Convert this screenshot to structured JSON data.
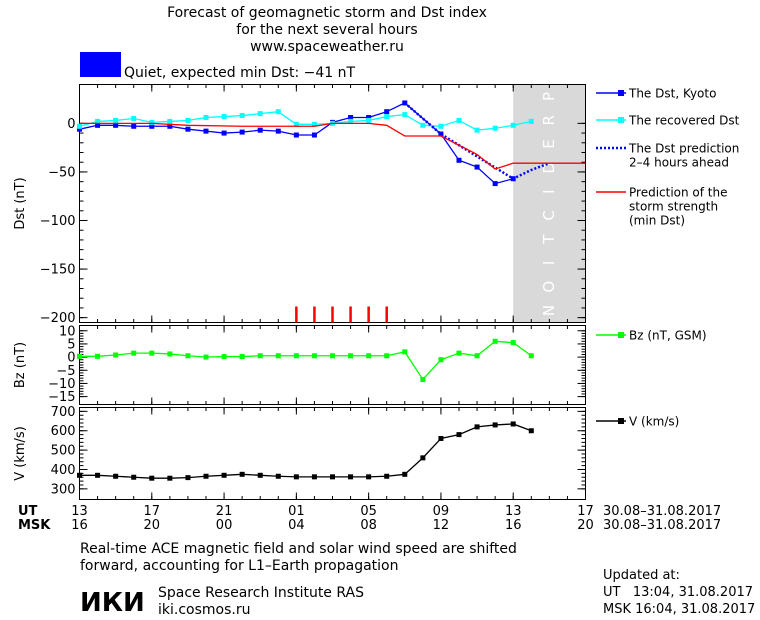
{
  "header": {
    "title_line1": "Forecast of geomagnetic storm and Dst index",
    "title_line2": "for the next several hours",
    "url": "www.spaceweather.ru",
    "status_text": "Quiet, expected min Dst: −41 nT",
    "status_color": "#0000ff"
  },
  "footer": {
    "note_line1": "Real-time ACE magnetic field and solar wind speed are shifted",
    "note_line2": "forward, accounting for L1–Earth propagation",
    "org_logo": "ИКИ",
    "org_name": "Space Research Institute RAS",
    "org_url": "iki.cosmos.ru",
    "updated_label": "Updated at:",
    "updated_ut": "UT   13:04, 31.08.2017",
    "updated_msk": "MSK 16:04, 31.08.2017"
  },
  "chart_data": {
    "type": "line",
    "xaxis": {
      "ut_label": "UT",
      "msk_label": "MSK",
      "ut_ticks": [
        13,
        17,
        21,
        1,
        5,
        9,
        13,
        17
      ],
      "ut_tick_labels": [
        "13",
        "17",
        "21",
        "01",
        "05",
        "09",
        "13",
        "17"
      ],
      "msk_tick_labels": [
        "16",
        "20",
        "00",
        "04",
        "08",
        "12",
        "16",
        "20"
      ],
      "date_range_ut": "30.08–31.08.2017",
      "date_range_msk": "30.08–31.08.2017",
      "range_hours": [
        13,
        41
      ]
    },
    "prediction_band": {
      "label": "PREDICTION",
      "x_start": 37,
      "x_end": 41,
      "color": "#d9d9d9"
    },
    "panels": [
      {
        "name": "dst",
        "ylabel": "Dst (nT)",
        "ylim": [
          -205,
          40
        ],
        "yticks": [
          0,
          -50,
          -100,
          -150,
          -200
        ],
        "ytick_labels": [
          "0",
          "−50",
          "−100",
          "−150",
          "−200"
        ],
        "series": [
          {
            "name": "The Dst, Kyoto",
            "color": "#0000ff",
            "marker": true,
            "x": [
              13,
              14,
              15,
              16,
              17,
              18,
              19,
              20,
              21,
              22,
              23,
              24,
              25,
              26,
              27,
              28,
              29,
              30,
              31,
              33,
              34,
              35,
              36,
              37
            ],
            "y": [
              -6,
              -2,
              -2,
              -3,
              -3,
              -3,
              -6,
              -8,
              -10,
              -9,
              -7,
              -8,
              -12,
              -12,
              1,
              6,
              6,
              12,
              21,
              -11,
              -38,
              -45,
              -62,
              -57
            ]
          },
          {
            "name": "The recovered Dst",
            "color": "#00ffff",
            "marker": true,
            "x": [
              13,
              14,
              15,
              16,
              17,
              18,
              19,
              20,
              21,
              22,
              23,
              24,
              25,
              26,
              27,
              28,
              29,
              30,
              31,
              32,
              33,
              34,
              35,
              36,
              37,
              38
            ],
            "y": [
              -3,
              2,
              3,
              5,
              1,
              2,
              3,
              6,
              7,
              8,
              10,
              12,
              -1,
              -1,
              0,
              2,
              3,
              7,
              9,
              -2,
              -3,
              3,
              -7,
              -5,
              -2,
              2
            ]
          },
          {
            "name": "The Dst prediction\n2–4 hours ahead",
            "color": "#0000ff",
            "dashed": true,
            "x": [
              31,
              32,
              33,
              37,
              38,
              39
            ],
            "y": [
              21,
              5,
              -11,
              -57,
              -48,
              -41
            ]
          },
          {
            "name": "Prediction of the\nstorm strength\n(min Dst)",
            "color": "#ff0000",
            "step": true,
            "x": [
              13,
              17,
              19,
              22,
              26,
              27,
              29,
              30,
              31,
              33,
              35,
              36,
              37,
              41
            ],
            "y": [
              0,
              0,
              -2,
              -3,
              -3,
              0,
              0,
              -2,
              -13,
              -13,
              -32,
              -47,
              -41,
              -41
            ]
          }
        ],
        "event_marks": {
          "color": "#ff0000",
          "x": [
            25,
            26,
            27,
            28,
            29,
            30
          ]
        }
      },
      {
        "name": "bz",
        "ylabel": "Bz (nT)",
        "ylim": [
          -18,
          12
        ],
        "yticks": [
          10,
          5,
          0,
          -5,
          -10,
          -15
        ],
        "ytick_labels": [
          "10",
          "5",
          "0",
          "−5",
          "−10",
          "−15"
        ],
        "series": [
          {
            "name": "Bz (nT, GSM)",
            "color": "#00ff00",
            "marker": true,
            "x": [
              13,
              14,
              15,
              16,
              17,
              18,
              19,
              20,
              21,
              22,
              23,
              24,
              25,
              26,
              27,
              28,
              29,
              30,
              31,
              32,
              33,
              34,
              35,
              36,
              37,
              38
            ],
            "y": [
              0.3,
              0.3,
              0.8,
              1.5,
              1.5,
              1.2,
              0.5,
              0.0,
              0.2,
              0.2,
              0.5,
              0.5,
              0.5,
              0.5,
              0.5,
              0.5,
              0.5,
              0.5,
              2.0,
              -8.5,
              -1.0,
              1.5,
              0.5,
              6.0,
              5.5,
              0.5
            ]
          }
        ]
      },
      {
        "name": "v",
        "ylabel": "V (km/s)",
        "ylim": [
          245,
          720
        ],
        "yticks": [
          700,
          600,
          500,
          400,
          300
        ],
        "ytick_labels": [
          "700",
          "600",
          "500",
          "400",
          "300"
        ],
        "series": [
          {
            "name": "V (km/s)",
            "color": "#000000",
            "marker": true,
            "x": [
              13,
              14,
              15,
              16,
              17,
              18,
              19,
              20,
              21,
              22,
              23,
              24,
              25,
              26,
              27,
              28,
              29,
              30,
              31,
              32,
              33,
              34,
              35,
              36,
              37,
              38
            ],
            "y": [
              370,
              370,
              365,
              360,
              355,
              355,
              358,
              365,
              370,
              375,
              370,
              365,
              362,
              362,
              362,
              362,
              362,
              365,
              375,
              460,
              560,
              580,
              620,
              630,
              635,
              600
            ]
          }
        ]
      }
    ]
  }
}
